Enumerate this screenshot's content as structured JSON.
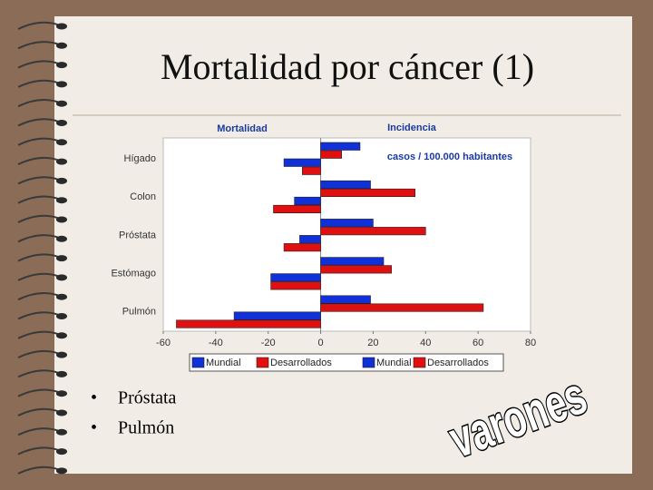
{
  "slide": {
    "title": "Mortalidad por cáncer (1)",
    "bullets": [
      "Próstata",
      "Pulmón"
    ],
    "stamp": "varones"
  },
  "chart_data": {
    "type": "hbar-diverging",
    "headers": [
      "Mortalidad",
      "Incidencia"
    ],
    "annotation": "casos / 100.000 habitantes",
    "categories": [
      "Hígado",
      "Colon",
      "Próstata",
      "Estómago",
      "Pulmón"
    ],
    "series": [
      {
        "name": "Mundial",
        "color": "#1030d8",
        "values": [
          15,
          19,
          20,
          24,
          19
        ]
      },
      {
        "name": "Desarrollados",
        "color": "#e01010",
        "values": [
          8,
          36,
          40,
          27,
          62
        ]
      },
      {
        "name": "Mundial",
        "color": "#1030d8",
        "values": [
          -14,
          -10,
          -8,
          -19,
          -33
        ]
      },
      {
        "name": "Desarrollados",
        "color": "#e01010",
        "values": [
          -7,
          -18,
          -14,
          -19,
          -55
        ]
      }
    ],
    "xlim": [
      -60,
      80
    ],
    "xticks": [
      -60,
      -40,
      -20,
      0,
      20,
      40,
      60,
      80
    ]
  }
}
